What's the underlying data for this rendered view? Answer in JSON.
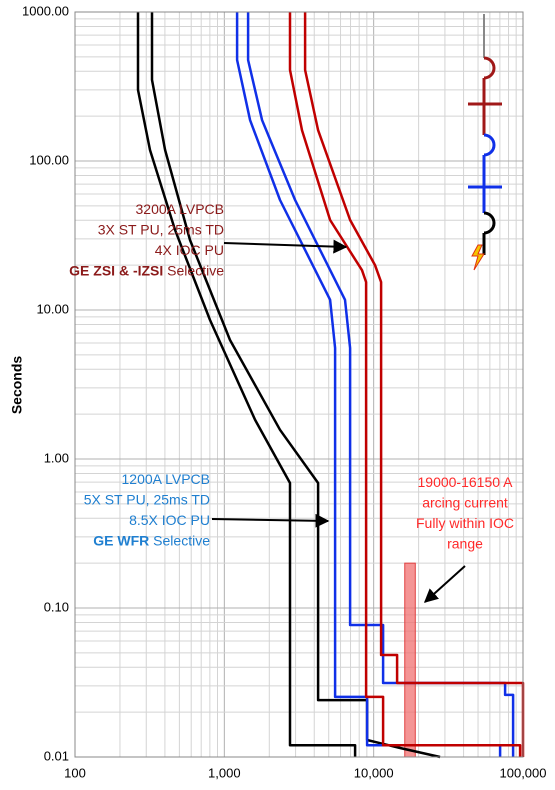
{
  "chart_data": {
    "type": "line",
    "ylabel": "Seconds",
    "xlog": true,
    "ylog": true,
    "grid": true,
    "xlim": [
      100,
      100000
    ],
    "ylim": [
      0.01,
      1000
    ],
    "xticks": [
      100,
      {
        "value": 1000,
        "label": "1,000"
      },
      {
        "value": 10000,
        "label": "10,000"
      },
      {
        "value": 100000,
        "label": "100,000"
      }
    ],
    "yticks": [
      {
        "value": 0.01,
        "label": "0.01"
      },
      {
        "value": 0.1,
        "label": "0.10"
      },
      {
        "value": 1,
        "label": "1.00"
      },
      {
        "value": 10,
        "label": "10.00"
      },
      {
        "value": 100,
        "label": "100.00"
      },
      {
        "value": 1000,
        "label": "1000.00"
      }
    ],
    "series": [
      {
        "color": "#000000",
        "x": [
          264,
          264,
          318,
          468,
          802,
          1607,
          2754,
          2754,
          7506,
          7506
        ],
        "values": [
          1000,
          300,
          118.6,
          34.4,
          8.57,
          1.83,
          0.69,
          0.012,
          0.012,
          0.01
        ]
      },
      {
        "color": "#000000",
        "x": [
          328,
          328,
          401,
          589,
          1092,
          2361,
          4243,
          4243,
          9033,
          9033,
          15030,
          27840
        ],
        "values": [
          1000,
          350,
          118.6,
          29.5,
          6.29,
          1.57,
          0.69,
          0.0241,
          0.0241,
          0.013,
          0.0115,
          0.01
        ]
      },
      {
        "color": "#1030e8",
        "x": [
          1217,
          1217,
          1487,
          2361,
          5105,
          5514,
          5514,
          9033,
          9033,
          70300,
          70300
        ],
        "values": [
          1000,
          476,
          188,
          54.7,
          11.7,
          5.56,
          0.0253,
          0.0253,
          0.012,
          0.012,
          0.01
        ]
      },
      {
        "color": "#1030e8",
        "x": [
          1442,
          1442,
          1789,
          2976,
          6430,
          6950,
          6950,
          11560,
          11560,
          75860,
          75860,
          85900,
          85900
        ],
        "values": [
          1000,
          476,
          188,
          54.7,
          11.7,
          5.56,
          0.0769,
          0.0769,
          0.0314,
          0.0314,
          0.0261,
          0.0261,
          0.01
        ]
      },
      {
        "color": "#c00000",
        "x": [
          2754,
          2754,
          3313,
          5105,
          8358,
          8893,
          8893,
          11560,
          11560,
          95700,
          95700
        ],
        "values": [
          1000,
          408,
          161,
          40.2,
          18.5,
          15.4,
          0.0253,
          0.0253,
          0.012,
          0.012,
          0.01
        ]
      },
      {
        "color": "#c00000",
        "x": [
          3472,
          3472,
          4243,
          6950,
          10210,
          11210,
          11210,
          14350,
          14350,
          100000,
          100000
        ],
        "values": [
          1000,
          408,
          161,
          40.2,
          20.0,
          15.4,
          0.0484,
          0.0484,
          0.0314,
          0.0314,
          0.01
        ]
      }
    ],
    "arc_band": {
      "x": [
        16150,
        19000
      ],
      "top": 0.2,
      "color": "#f07070"
    },
    "annotations": [
      {
        "color": "#8b1a1a",
        "lines": [
          [
            {
              "text": "3200A LVPCB"
            }
          ],
          [
            {
              "text": "3X ST PU, 25ms TD"
            }
          ],
          [
            {
              "text": "4X IOC PU"
            }
          ],
          [
            {
              "text": "GE ZSI & -IZSI",
              "bold": true
            },
            {
              "text": " Selective"
            }
          ]
        ]
      },
      {
        "color": "#1f7fd0",
        "lines": [
          [
            {
              "text": "1200A LVPCB"
            }
          ],
          [
            {
              "text": "5X ST PU, 25ms TD"
            }
          ],
          [
            {
              "text": "8.5X IOC PU"
            }
          ],
          [
            {
              "text": "GE WFR",
              "bold": true
            },
            {
              "text": " Selective"
            }
          ]
        ]
      },
      {
        "color": "#ff2a2a",
        "lines": [
          [
            {
              "text": "19000-16150 A"
            }
          ],
          [
            {
              "text": "arcing current"
            }
          ],
          [
            {
              "text": "Fully within IOC"
            }
          ],
          [
            {
              "text": "range"
            }
          ]
        ]
      }
    ]
  }
}
